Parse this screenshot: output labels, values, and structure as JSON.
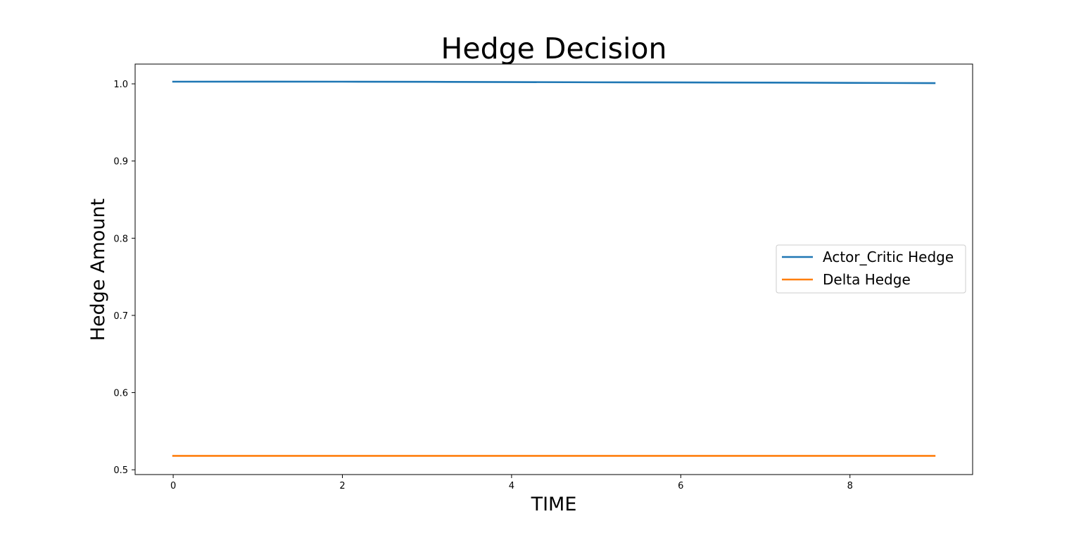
{
  "chart_data": {
    "type": "line",
    "title": "Hedge Decision",
    "xlabel": "TIME",
    "ylabel": "Hedge Amount",
    "x": [
      0,
      1,
      2,
      3,
      4,
      5,
      6,
      7,
      8,
      9
    ],
    "xlim": [
      -0.45,
      9.45
    ],
    "ylim": [
      0.4938,
      1.0256
    ],
    "xticks": [
      0,
      2,
      4,
      6,
      8
    ],
    "yticks": [
      0.5,
      0.6,
      0.7,
      0.8,
      0.9,
      1.0
    ],
    "xtick_labels": [
      "0",
      "2",
      "4",
      "6",
      "8"
    ],
    "ytick_labels": [
      "0.5",
      "0.6",
      "0.7",
      "0.8",
      "0.9",
      "1.0"
    ],
    "grid": false,
    "legend_position": "center-right",
    "series": [
      {
        "name": "Actor_Critic Hedge",
        "color": "#1f77b4",
        "values": [
          1.0028,
          1.0029,
          1.0028,
          1.0026,
          1.0023,
          1.002,
          1.0018,
          1.0016,
          1.0013,
          1.0009
        ]
      },
      {
        "name": "Delta Hedge",
        "color": "#ff7f0e",
        "values": [
          0.518,
          0.518,
          0.518,
          0.518,
          0.518,
          0.518,
          0.518,
          0.518,
          0.518,
          0.518
        ]
      }
    ]
  }
}
